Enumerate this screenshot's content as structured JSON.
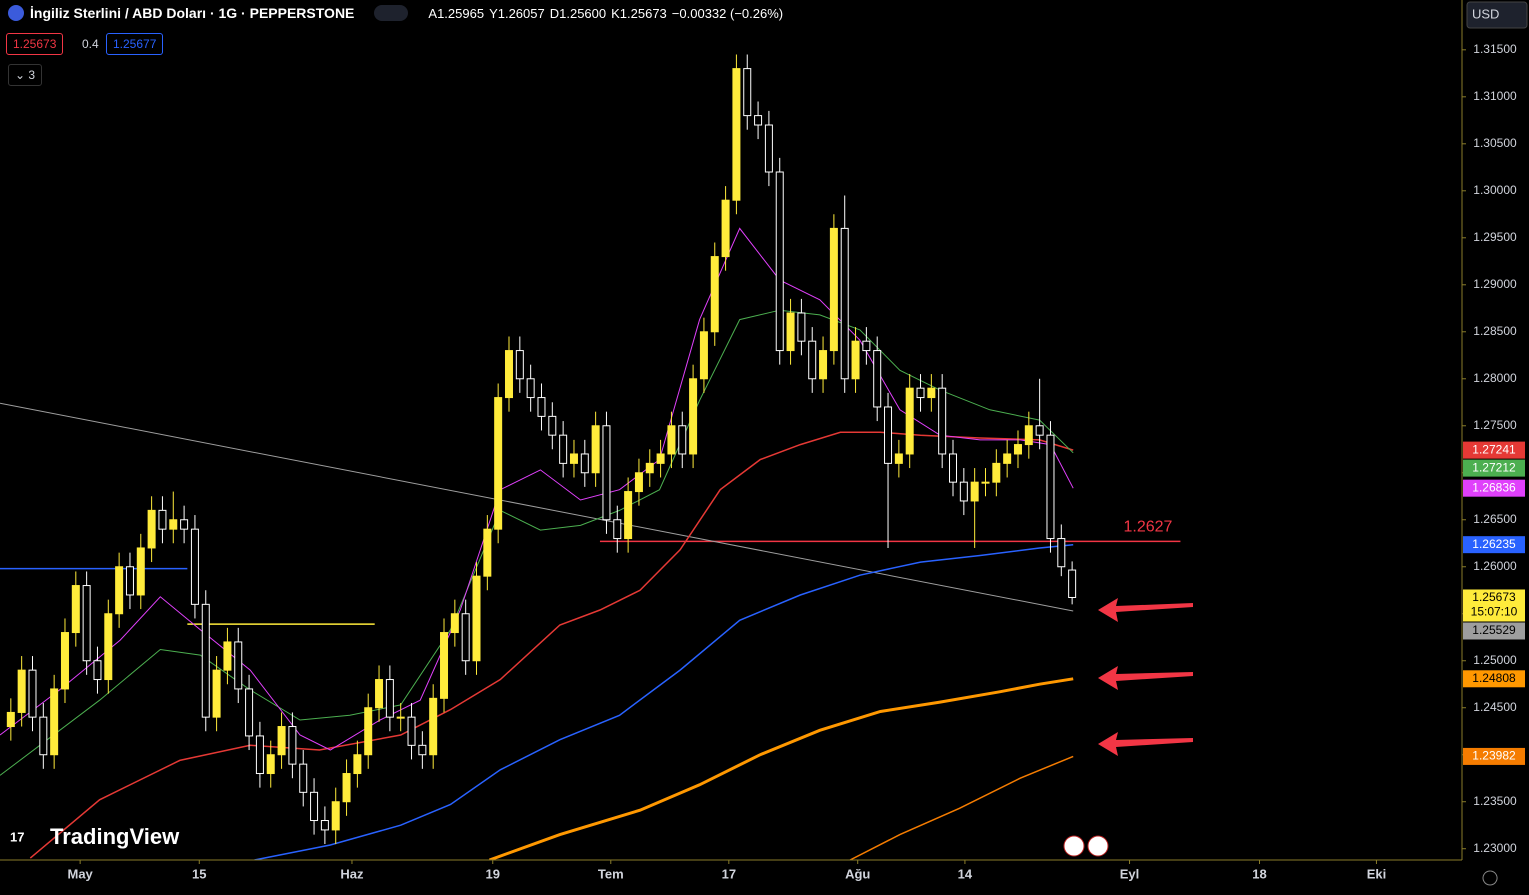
{
  "header": {
    "symbol": "İngiliz Sterlini / ABD Doları · 1G · PEPPERSTONE",
    "ohlc": [
      {
        "label": "A",
        "value": "1.25965"
      },
      {
        "label": "Y",
        "value": "1.26057"
      },
      {
        "label": "D",
        "value": "1.25600"
      },
      {
        "label": "K",
        "value": "1.25673"
      }
    ],
    "change": "−0.00332 (−0.26%)"
  },
  "trade": {
    "sell": "1.25673",
    "spread": "0.4",
    "buy": "1.25677"
  },
  "indicators_count": "3",
  "currency": "USD",
  "logo": "TradingView",
  "countdown": "15:07:10",
  "chart_data": {
    "type": "candlestick",
    "up_color": "#ffeb3b",
    "down_color": "#ffffff",
    "open": [
      1.243,
      1.2445,
      1.249,
      1.244,
      1.24,
      1.247,
      1.253,
      1.258,
      1.25,
      1.248,
      1.255,
      1.26,
      1.257,
      1.262,
      1.266,
      1.264,
      1.265,
      1.264,
      1.256,
      1.244,
      1.249,
      1.252,
      1.247,
      1.242,
      1.238,
      1.24,
      1.243,
      1.239,
      1.236,
      1.233,
      1.232,
      1.235,
      1.238,
      1.24,
      1.245,
      1.248,
      1.244,
      1.244,
      1.241,
      1.24,
      1.246,
      1.253,
      1.255,
      1.25,
      1.259,
      1.264,
      1.278,
      1.283,
      1.28,
      1.278,
      1.276,
      1.274,
      1.271,
      1.272,
      1.27,
      1.275,
      1.265,
      1.263,
      1.268,
      1.27,
      1.271,
      1.272,
      1.275,
      1.272,
      1.28,
      1.285,
      1.293,
      1.299,
      1.313,
      1.308,
      1.307,
      1.302,
      1.283,
      1.287,
      1.284,
      1.28,
      1.283,
      1.296,
      1.28,
      1.284,
      1.283,
      1.277,
      1.271,
      1.272,
      1.279,
      1.278,
      1.279,
      1.272,
      1.269,
      1.267,
      1.269,
      1.269,
      1.271,
      1.272,
      1.273,
      1.275,
      1.274,
      1.263,
      1.25965
    ],
    "high": [
      1.246,
      1.2505,
      1.2505,
      1.2455,
      1.2485,
      1.2545,
      1.2595,
      1.2595,
      1.2515,
      1.2565,
      1.2615,
      1.2615,
      1.2635,
      1.2675,
      1.2675,
      1.268,
      1.2665,
      1.2655,
      1.2575,
      1.2505,
      1.2535,
      1.2535,
      1.2485,
      1.2435,
      1.2415,
      1.2445,
      1.2445,
      1.2405,
      1.2375,
      1.2345,
      1.2365,
      1.2395,
      1.2415,
      1.2465,
      1.2495,
      1.2495,
      1.2455,
      1.2455,
      1.2425,
      1.2475,
      1.2545,
      1.2565,
      1.2565,
      1.2605,
      1.2655,
      1.2795,
      1.2845,
      1.2845,
      1.2815,
      1.2795,
      1.2775,
      1.2755,
      1.2735,
      1.2735,
      1.2765,
      1.2765,
      1.2665,
      1.2695,
      1.2715,
      1.2725,
      1.2735,
      1.2765,
      1.2765,
      1.2815,
      1.2865,
      1.2945,
      1.3005,
      1.3145,
      1.3145,
      1.3095,
      1.3085,
      1.3035,
      1.2885,
      1.2885,
      1.2855,
      1.2845,
      1.2975,
      1.2995,
      1.2855,
      1.2855,
      1.2845,
      1.2785,
      1.2735,
      1.2805,
      1.2805,
      1.2805,
      1.2805,
      1.2735,
      1.2705,
      1.2705,
      1.2705,
      1.2725,
      1.2735,
      1.2745,
      1.2765,
      1.28,
      1.2755,
      1.2645,
      1.26057
    ],
    "low": [
      1.2415,
      1.243,
      1.2425,
      1.2385,
      1.2385,
      1.2455,
      1.2515,
      1.2485,
      1.2465,
      1.2465,
      1.2535,
      1.2555,
      1.2555,
      1.2605,
      1.2625,
      1.2625,
      1.2625,
      1.2545,
      1.2425,
      1.2425,
      1.2475,
      1.2455,
      1.2405,
      1.2365,
      1.2365,
      1.2385,
      1.2375,
      1.2345,
      1.2315,
      1.2305,
      1.2305,
      1.2335,
      1.2365,
      1.2385,
      1.2435,
      1.2425,
      1.2425,
      1.2395,
      1.2385,
      1.2385,
      1.2445,
      1.2515,
      1.2485,
      1.2485,
      1.2575,
      1.2625,
      1.2765,
      1.2785,
      1.2765,
      1.2745,
      1.2725,
      1.2695,
      1.2695,
      1.2685,
      1.2685,
      1.2635,
      1.2615,
      1.2615,
      1.2665,
      1.2685,
      1.2695,
      1.2705,
      1.2705,
      1.2705,
      1.2785,
      1.2835,
      1.2915,
      1.2975,
      1.3065,
      1.3055,
      1.3005,
      1.2815,
      1.2815,
      1.2825,
      1.2785,
      1.2785,
      1.2815,
      1.2785,
      1.2785,
      1.2815,
      1.2755,
      1.262,
      1.2695,
      1.2705,
      1.2765,
      1.2765,
      1.2705,
      1.2675,
      1.2655,
      1.262,
      1.2675,
      1.2675,
      1.2695,
      1.2705,
      1.2715,
      1.2725,
      1.2615,
      1.259,
      1.256
    ],
    "close": [
      1.2445,
      1.249,
      1.244,
      1.24,
      1.247,
      1.253,
      1.258,
      1.25,
      1.248,
      1.255,
      1.26,
      1.257,
      1.262,
      1.266,
      1.264,
      1.265,
      1.264,
      1.256,
      1.244,
      1.249,
      1.252,
      1.247,
      1.242,
      1.238,
      1.24,
      1.243,
      1.239,
      1.236,
      1.233,
      1.232,
      1.235,
      1.238,
      1.24,
      1.245,
      1.248,
      1.244,
      1.244,
      1.241,
      1.24,
      1.246,
      1.253,
      1.255,
      1.25,
      1.259,
      1.264,
      1.278,
      1.283,
      1.28,
      1.278,
      1.276,
      1.274,
      1.271,
      1.272,
      1.27,
      1.275,
      1.265,
      1.263,
      1.268,
      1.27,
      1.271,
      1.272,
      1.275,
      1.272,
      1.28,
      1.285,
      1.293,
      1.299,
      1.313,
      1.308,
      1.307,
      1.302,
      1.283,
      1.287,
      1.284,
      1.28,
      1.283,
      1.296,
      1.28,
      1.284,
      1.283,
      1.277,
      1.271,
      1.272,
      1.279,
      1.278,
      1.279,
      1.272,
      1.269,
      1.267,
      1.269,
      1.269,
      1.271,
      1.272,
      1.273,
      1.275,
      1.274,
      1.263,
      1.26,
      1.25673
    ],
    "xlim": [
      -1,
      134
    ],
    "xticks": [
      {
        "value": 6.4,
        "label": "May"
      },
      {
        "value": 17.4,
        "label": "15"
      },
      {
        "value": 31.5,
        "label": "Haz"
      },
      {
        "value": 44.5,
        "label": "19"
      },
      {
        "value": 55.4,
        "label": "Tem"
      },
      {
        "value": 66.3,
        "label": "17"
      },
      {
        "value": 78.2,
        "label": "Ağu"
      },
      {
        "value": 88.1,
        "label": "14"
      },
      {
        "value": 103.3,
        "label": "Eyl"
      },
      {
        "value": 115.3,
        "label": "18"
      },
      {
        "value": 126.1,
        "label": "Eki"
      }
    ],
    "ylim": [
      1.2288,
      1.3203
    ],
    "yticks": [
      {
        "value": 1.315,
        "label": "1.31500"
      },
      {
        "value": 1.31,
        "label": "1.31000"
      },
      {
        "value": 1.305,
        "label": "1.30500"
      },
      {
        "value": 1.3,
        "label": "1.30000"
      },
      {
        "value": 1.295,
        "label": "1.29500"
      },
      {
        "value": 1.29,
        "label": "1.29000"
      },
      {
        "value": 1.285,
        "label": "1.28500"
      },
      {
        "value": 1.28,
        "label": "1.28000"
      },
      {
        "value": 1.275,
        "label": "1.27500"
      },
      {
        "value": 1.27,
        "label": "1.27000"
      },
      {
        "value": 1.265,
        "label": "1.26500"
      },
      {
        "value": 1.26,
        "label": "1.26000"
      },
      {
        "value": 1.255,
        "label": "1.25500"
      },
      {
        "value": 1.25,
        "label": "1.25000"
      },
      {
        "value": 1.245,
        "label": "1.24500"
      },
      {
        "value": 1.24,
        "label": "1.24000"
      },
      {
        "value": 1.235,
        "label": "1.23500"
      },
      {
        "value": 1.23,
        "label": "1.23000"
      }
    ],
    "series": [
      {
        "color": "#9e9e9e",
        "width": 1,
        "x": [
          -1,
          98.1
        ],
        "values": [
          1.2774,
          1.25529
        ]
      },
      {
        "color": "#f57c00",
        "width": 1.5,
        "x": [
          77.5,
          82.1,
          87.6,
          93.2,
          98.1
        ],
        "values": [
          1.2288,
          1.2315,
          1.2343,
          1.2375,
          1.23982
        ]
      },
      {
        "color": "#ff9800",
        "width": 3,
        "x": [
          44.2,
          50.7,
          58.1,
          63.6,
          69.2,
          74.7,
          80.3,
          85.8,
          91.3,
          95.0,
          98.1
        ],
        "values": [
          1.2288,
          1.2315,
          1.2341,
          1.2368,
          1.24,
          1.2426,
          1.2446,
          1.2456,
          1.2467,
          1.2475,
          1.24808
        ]
      },
      {
        "color": "#2962ff",
        "width": 1.5,
        "x": [
          22.5,
          29.5,
          36.0,
          40.6,
          45.2,
          50.7,
          56.2,
          61.8,
          67.3,
          72.9,
          78.4,
          84.0,
          89.5,
          95.0,
          98.1
        ],
        "values": [
          1.2288,
          1.2304,
          1.2325,
          1.2347,
          1.2384,
          1.2416,
          1.2442,
          1.249,
          1.2543,
          1.257,
          1.2591,
          1.2605,
          1.2612,
          1.262,
          1.26235
        ]
      },
      {
        "color": "#e53935",
        "width": 1.5,
        "x": [
          1.8,
          8.2,
          15.6,
          22.1,
          28.5,
          36.0,
          40.6,
          45.2,
          50.7,
          54.4,
          58.1,
          61.8,
          65.5,
          69.2,
          72.9,
          76.6,
          80.3,
          84.0,
          89.5,
          95.0,
          98.1
        ],
        "values": [
          1.229,
          1.2352,
          1.2394,
          1.241,
          1.2405,
          1.2421,
          1.2448,
          1.248,
          1.2538,
          1.2554,
          1.2575,
          1.2618,
          1.2682,
          1.2714,
          1.273,
          1.2743,
          1.2743,
          1.274,
          1.2737,
          1.2735,
          1.27241
        ]
      },
      {
        "color": "#4caf50",
        "width": 1,
        "x": [
          -1,
          8.2,
          13.8,
          17.5,
          22.1,
          26.7,
          31.3,
          36.0,
          40.6,
          45.2,
          48.9,
          52.6,
          56.2,
          59.9,
          63.6,
          67.3,
          71.0,
          74.7,
          78.4,
          82.1,
          85.8,
          90.4,
          95.0,
          98.1
        ],
        "values": [
          1.2378,
          1.2458,
          1.2512,
          1.2506,
          1.2469,
          1.2437,
          1.2442,
          1.2453,
          1.2533,
          1.266,
          1.2639,
          1.2644,
          1.266,
          1.2682,
          1.2777,
          1.2863,
          1.2873,
          1.2868,
          1.2852,
          1.2809,
          1.2788,
          1.2767,
          1.2756,
          1.27212
        ]
      },
      {
        "color": "#e040fb",
        "width": 1,
        "x": [
          -1,
          4.5,
          10.1,
          13.8,
          17.5,
          22.1,
          26.7,
          29.5,
          34.1,
          37.8,
          41.5,
          45.2,
          48.9,
          52.6,
          56.2,
          59.9,
          63.6,
          67.3,
          71.0,
          74.7,
          78.4,
          82.1,
          85.8,
          89.5,
          93.2,
          96.0,
          98.1
        ],
        "values": [
          1.2421,
          1.2469,
          1.2522,
          1.2568,
          1.2533,
          1.249,
          1.2421,
          1.2405,
          1.2437,
          1.2458,
          1.2554,
          1.2682,
          1.2703,
          1.2671,
          1.2682,
          1.2714,
          1.2863,
          1.296,
          1.2905,
          1.2884,
          1.2841,
          1.2767,
          1.274,
          1.2735,
          1.2735,
          1.273,
          1.26836
        ]
      }
    ],
    "levels": [
      {
        "value": 1.2627,
        "x": [
          54.4,
          108
        ],
        "color": "#f23645",
        "annotated": true
      },
      {
        "value": 1.2539,
        "x": [
          16.3,
          33.6
        ],
        "color": "#ffeb3b",
        "annotated": false
      },
      {
        "value": 1.2598,
        "x": [
          -1,
          16.3
        ],
        "color": "#2962ff",
        "annotated": false
      }
    ]
  }
}
